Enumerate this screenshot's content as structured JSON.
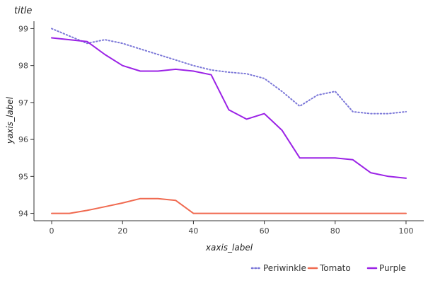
{
  "chart_data": {
    "type": "line",
    "title": "title",
    "xlabel": "xaxis_label",
    "ylabel": "yaxis_label",
    "xlim": [
      -5,
      105
    ],
    "ylim": [
      93.8,
      99.2
    ],
    "xticks": [
      0,
      20,
      40,
      60,
      80,
      100
    ],
    "xtick_labels": [
      "0",
      "20",
      "40",
      "60",
      "80",
      "100"
    ],
    "yticks": [
      94,
      95,
      96,
      97,
      98,
      99
    ],
    "ytick_labels": [
      "94",
      "95",
      "96",
      "97",
      "98",
      "99"
    ],
    "grid": false,
    "legend_position": "bottom",
    "series": [
      {
        "name": "Periwinkle",
        "color": "#7b77d8",
        "dash": "dotted",
        "x": [
          0,
          10,
          15,
          20,
          25,
          30,
          35,
          40,
          45,
          50,
          55,
          60,
          65,
          70,
          75,
          80,
          85,
          90,
          95,
          100
        ],
        "y": [
          99.0,
          98.6,
          98.7,
          98.6,
          98.45,
          98.3,
          98.15,
          98.0,
          97.88,
          97.82,
          97.78,
          97.65,
          97.3,
          96.9,
          97.2,
          97.3,
          96.75,
          96.7,
          96.7,
          96.75
        ]
      },
      {
        "name": "Tomato",
        "color": "#f06a50",
        "dash": "solid",
        "x": [
          0,
          5,
          10,
          15,
          20,
          25,
          30,
          35,
          40,
          45,
          50,
          60,
          70,
          80,
          90,
          100
        ],
        "y": [
          94.0,
          94.0,
          94.08,
          94.18,
          94.28,
          94.4,
          94.4,
          94.35,
          94.0,
          94.0,
          94.0,
          94.0,
          94.0,
          94.0,
          94.0,
          94.0
        ]
      },
      {
        "name": "Purple",
        "color": "#9b22e6",
        "dash": "solid",
        "x": [
          0,
          10,
          15,
          20,
          25,
          30,
          35,
          40,
          45,
          50,
          55,
          60,
          65,
          70,
          75,
          80,
          85,
          90,
          95,
          100
        ],
        "y": [
          98.75,
          98.65,
          98.3,
          98.0,
          97.85,
          97.85,
          97.9,
          97.85,
          97.75,
          96.8,
          96.55,
          96.7,
          96.25,
          95.5,
          95.5,
          95.5,
          95.45,
          95.1,
          95.0,
          94.95
        ]
      }
    ]
  }
}
